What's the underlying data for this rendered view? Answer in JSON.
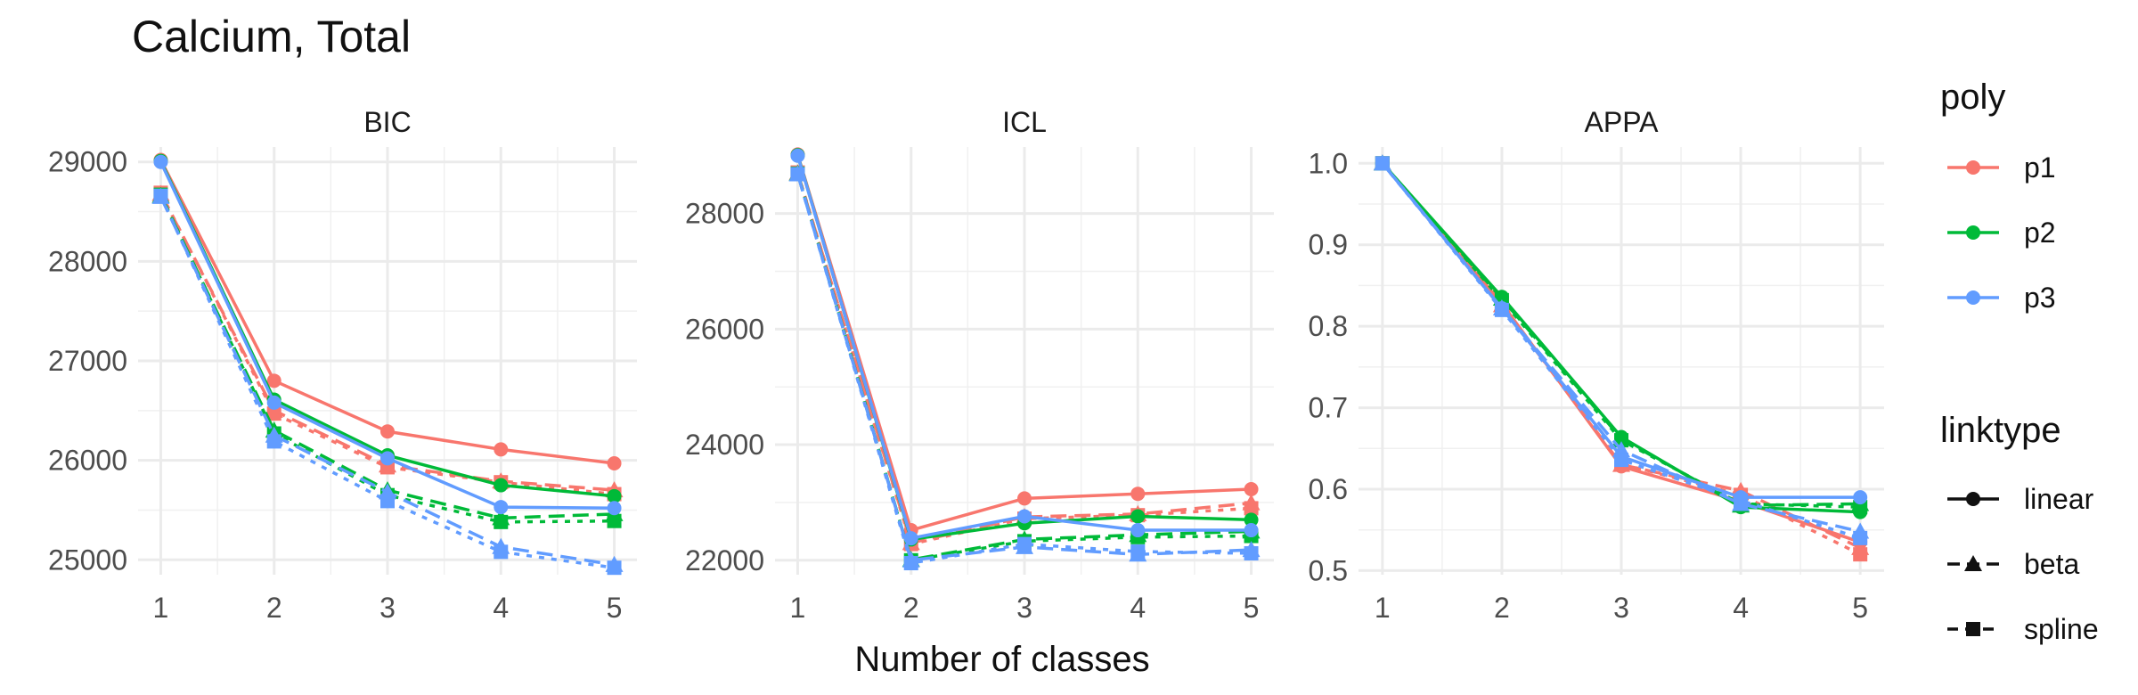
{
  "title": "Calcium, Total",
  "chart_data": {
    "type": "line",
    "title": "Calcium, Total",
    "xlabel": "Number of classes",
    "ylabel": "",
    "x": [
      1,
      2,
      3,
      4,
      5
    ],
    "x_ticks": [
      "1",
      "2",
      "3",
      "4",
      "5"
    ],
    "grid": true,
    "legend_placement": "right",
    "legends": {
      "poly": {
        "title": "poly",
        "entries": [
          {
            "label": "p1",
            "color": "#F8766D"
          },
          {
            "label": "p2",
            "color": "#00BA38"
          },
          {
            "label": "p3",
            "color": "#619CFF"
          }
        ]
      },
      "linktype": {
        "title": "linktype",
        "entries": [
          {
            "label": "linear",
            "line": "solid",
            "marker": "circle"
          },
          {
            "label": "beta",
            "line": "dashed",
            "marker": "triangle"
          },
          {
            "label": "spline",
            "line": "dotted",
            "marker": "square"
          }
        ]
      }
    },
    "panels": [
      {
        "name": "BIC",
        "ylim": [
          24850,
          29150
        ],
        "yticks": [
          25000,
          26000,
          27000,
          28000,
          29000
        ],
        "y_tick_labels": [
          "25000",
          "26000",
          "27000",
          "28000",
          "29000"
        ],
        "series": [
          {
            "poly": "p1",
            "linktype": "linear",
            "values": [
              29020,
              26800,
              26290,
              26110,
              25970
            ]
          },
          {
            "poly": "p1",
            "linktype": "beta",
            "values": [
              28680,
              26500,
              25950,
              25790,
              25700
            ]
          },
          {
            "poly": "p1",
            "linktype": "spline",
            "values": [
              28690,
              26470,
              25930,
              25780,
              25660
            ]
          },
          {
            "poly": "p2",
            "linktype": "linear",
            "values": [
              29010,
              26610,
              26050,
              25750,
              25640
            ]
          },
          {
            "poly": "p2",
            "linktype": "beta",
            "values": [
              28660,
              26300,
              25700,
              25420,
              25460
            ]
          },
          {
            "poly": "p2",
            "linktype": "spline",
            "values": [
              28670,
              26270,
              25650,
              25380,
              25390
            ]
          },
          {
            "poly": "p3",
            "linktype": "linear",
            "values": [
              29000,
              26580,
              26020,
              25530,
              25520
            ]
          },
          {
            "poly": "p3",
            "linktype": "beta",
            "values": [
              28650,
              26250,
              25680,
              25130,
              24950
            ]
          },
          {
            "poly": "p3",
            "linktype": "spline",
            "values": [
              28660,
              26190,
              25590,
              25080,
              24920
            ]
          }
        ]
      },
      {
        "name": "ICL",
        "ylim": [
          21750,
          29150
        ],
        "yticks": [
          22000,
          24000,
          26000,
          28000
        ],
        "y_tick_labels": [
          "22000",
          "24000",
          "26000",
          "28000"
        ],
        "series": [
          {
            "poly": "p1",
            "linktype": "linear",
            "values": [
              29020,
              22520,
              23070,
              23150,
              23230
            ]
          },
          {
            "poly": "p1",
            "linktype": "beta",
            "values": [
              28700,
              22300,
              22750,
              22800,
              22990
            ]
          },
          {
            "poly": "p1",
            "linktype": "spline",
            "values": [
              28710,
              22280,
              22720,
              22780,
              22900
            ]
          },
          {
            "poly": "p2",
            "linktype": "linear",
            "values": [
              29010,
              22360,
              22640,
              22760,
              22700
            ]
          },
          {
            "poly": "p2",
            "linktype": "beta",
            "values": [
              28690,
              22010,
              22360,
              22440,
              22500
            ]
          },
          {
            "poly": "p2",
            "linktype": "spline",
            "values": [
              28690,
              22000,
              22330,
              22400,
              22420
            ]
          },
          {
            "poly": "p3",
            "linktype": "linear",
            "values": [
              29000,
              22380,
              22760,
              22520,
              22520
            ]
          },
          {
            "poly": "p3",
            "linktype": "beta",
            "values": [
              28680,
              22000,
              22230,
              22100,
              22180
            ]
          },
          {
            "poly": "p3",
            "linktype": "spline",
            "values": [
              28680,
              21950,
              22280,
              22150,
              22120
            ]
          }
        ]
      },
      {
        "name": "APPA",
        "ylim": [
          0.495,
          1.02
        ],
        "yticks": [
          0.5,
          0.6,
          0.7,
          0.8,
          0.9,
          1.0
        ],
        "y_tick_labels": [
          "0.5",
          "0.6",
          "0.7",
          "0.8",
          "0.9",
          "1.0"
        ],
        "series": [
          {
            "poly": "p1",
            "linktype": "linear",
            "values": [
              1.0,
              0.828,
              0.628,
              0.585,
              0.535
            ]
          },
          {
            "poly": "p1",
            "linktype": "beta",
            "values": [
              1.0,
              0.826,
              0.63,
              0.598,
              0.528
            ]
          },
          {
            "poly": "p1",
            "linktype": "spline",
            "values": [
              1.0,
              0.826,
              0.631,
              0.593,
              0.52
            ]
          },
          {
            "poly": "p2",
            "linktype": "linear",
            "values": [
              1.0,
              0.836,
              0.664,
              0.578,
              0.572
            ]
          },
          {
            "poly": "p2",
            "linktype": "beta",
            "values": [
              1.0,
              0.834,
              0.662,
              0.58,
              0.582
            ]
          },
          {
            "poly": "p2",
            "linktype": "spline",
            "values": [
              1.0,
              0.832,
              0.66,
              0.582,
              0.578
            ]
          },
          {
            "poly": "p3",
            "linktype": "linear",
            "values": [
              1.0,
              0.822,
              0.64,
              0.59,
              0.59
            ]
          },
          {
            "poly": "p3",
            "linktype": "beta",
            "values": [
              1.0,
              0.822,
              0.648,
              0.582,
              0.548
            ]
          },
          {
            "poly": "p3",
            "linktype": "spline",
            "values": [
              1.0,
              0.82,
              0.636,
              0.586,
              0.54
            ]
          }
        ]
      }
    ]
  }
}
